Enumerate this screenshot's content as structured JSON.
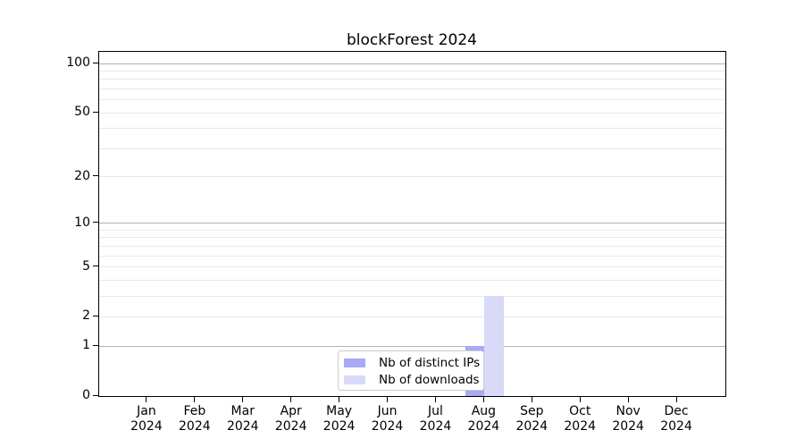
{
  "title": "blockForest 2024",
  "legend": {
    "items": [
      {
        "label": "Nb of distinct IPs",
        "color": "#a9a9f5"
      },
      {
        "label": "Nb of downloads",
        "color": "#d9d9f8"
      }
    ]
  },
  "chart_data": {
    "type": "bar",
    "title": "blockForest 2024",
    "categories": [
      "Jan 2024",
      "Feb 2024",
      "Mar 2024",
      "Apr 2024",
      "May 2024",
      "Jun 2024",
      "Jul 2024",
      "Aug 2024",
      "Sep 2024",
      "Oct 2024",
      "Nov 2024",
      "Dec 2024"
    ],
    "series": [
      {
        "name": "Nb of distinct IPs",
        "color": "#a9a9f5",
        "values": [
          0,
          0,
          0,
          0,
          0,
          0,
          0,
          1,
          0,
          0,
          0,
          0
        ]
      },
      {
        "name": "Nb of downloads",
        "color": "#d9d9f8",
        "values": [
          0,
          0,
          0,
          0,
          0,
          0,
          0,
          3,
          0,
          0,
          0,
          0
        ]
      }
    ],
    "xlabel": "",
    "ylabel": "",
    "yscale": "log1p",
    "ylim": [
      0,
      117.7
    ],
    "y_tick_labels": [
      0,
      1,
      2,
      5,
      10,
      20,
      50,
      100
    ],
    "y_major_gridlines": [
      1,
      10,
      100
    ],
    "y_minor_gridlines": [
      2,
      3,
      4,
      5,
      6,
      7,
      8,
      9,
      20,
      30,
      40,
      50,
      60,
      70,
      80,
      90
    ],
    "grid": true,
    "legend_position": "lower center",
    "bar_group_width": 0.8,
    "colors": {
      "major_grid": "#b2b2b2",
      "minor_grid": "#e9e9e9",
      "spine": "#000000",
      "background": "#ffffff"
    }
  }
}
